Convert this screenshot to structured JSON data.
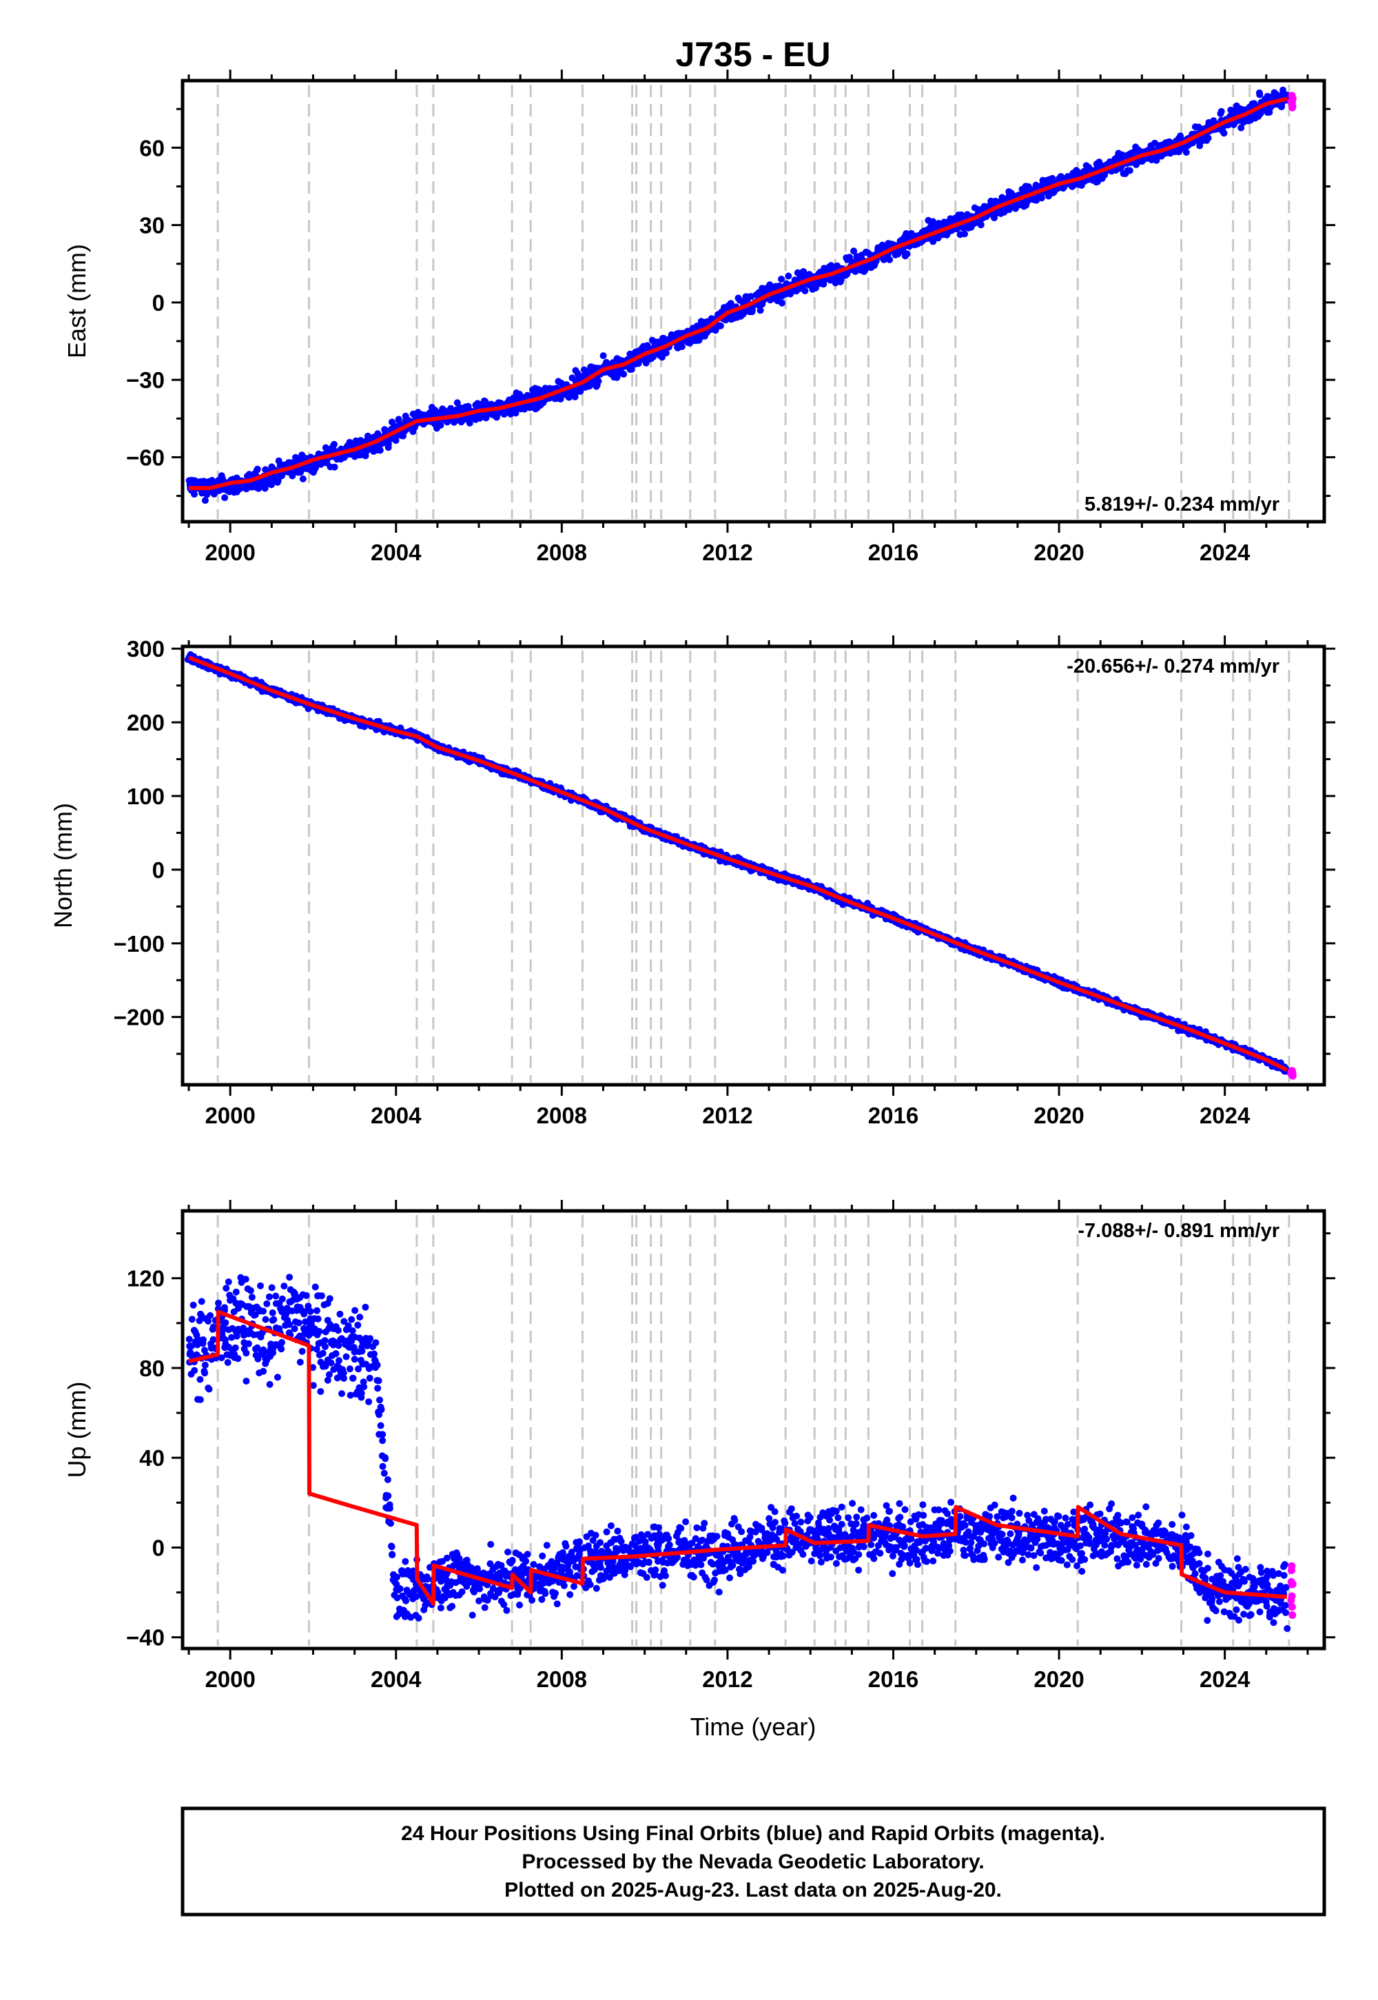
{
  "title": "J735 - EU",
  "xlabel": "Time (year)",
  "colors": {
    "final_orbits": "#0000ff",
    "rapid_orbits": "#ff00ff",
    "model": "#ff0000",
    "event_lines": "#c8c8c8"
  },
  "footer": {
    "line1": "24 Hour Positions Using Final Orbits (blue) and Rapid Orbits (magenta).",
    "line2": "Processed by the Nevada Geodetic Laboratory.",
    "line3": "Plotted on 2025-Aug-23. Last data on 2025-Aug-20."
  },
  "chart_data": [
    {
      "type": "scatter",
      "component": "east",
      "ylabel": "East (mm)",
      "rate_label": "5.819+/- 0.234 mm/yr",
      "rate_position": "bottom-right",
      "xlim": [
        1998.85,
        2026.4
      ],
      "ylim": [
        -85,
        86
      ],
      "xticks": [
        2000,
        2004,
        2008,
        2012,
        2016,
        2020,
        2024
      ],
      "yticks": [
        -60,
        -30,
        0,
        30,
        60
      ],
      "grid": false,
      "event_lines": [
        1999.7,
        2001.9,
        2004.5,
        2004.9,
        2006.8,
        2007.25,
        2008.5,
        2009.7,
        2009.8,
        2010.15,
        2010.4,
        2011.1,
        2011.7,
        2013.4,
        2014.1,
        2014.6,
        2014.85,
        2015.4,
        2016.4,
        2016.7,
        2017.5,
        2020.45,
        2022.95,
        2024.2,
        2024.6,
        2025.55
      ],
      "series": [
        {
          "role": "final-orbits",
          "x": [
            1999.0,
            1999.5,
            2000.0,
            2000.5,
            2001.0,
            2001.5,
            2002.0,
            2002.5,
            2003.0,
            2003.5,
            2004.0,
            2004.5,
            2005.0,
            2005.5,
            2006.0,
            2006.5,
            2007.0,
            2007.5,
            2008.0,
            2008.5,
            2009.0,
            2009.5,
            2010.0,
            2010.5,
            2011.0,
            2011.5,
            2012.0,
            2012.5,
            2013.0,
            2013.5,
            2014.0,
            2014.5,
            2015.0,
            2015.5,
            2016.0,
            2016.5,
            2017.0,
            2017.5,
            2018.0,
            2018.5,
            2019.0,
            2019.5,
            2020.0,
            2020.5,
            2021.0,
            2021.5,
            2022.0,
            2022.5,
            2023.0,
            2023.5,
            2024.0,
            2024.5,
            2025.0,
            2025.5
          ],
          "y": [
            -71,
            -72,
            -71,
            -70,
            -67,
            -64,
            -62,
            -59,
            -57,
            -55,
            -50,
            -46,
            -45,
            -44,
            -42,
            -41,
            -39,
            -37,
            -34,
            -31,
            -26,
            -24,
            -20,
            -17,
            -13,
            -10,
            -4,
            -1,
            3,
            6,
            9,
            11,
            14,
            17,
            21,
            24,
            27,
            30,
            33,
            37,
            40,
            43,
            46,
            48,
            51,
            54,
            57,
            59,
            62,
            66,
            70,
            73,
            77,
            79
          ]
        },
        {
          "role": "rapid-orbits",
          "x": [
            2025.6,
            2025.62
          ],
          "y": [
            79,
            77
          ]
        },
        {
          "role": "model",
          "x": [
            1999.0,
            1999.5,
            2000.0,
            2000.5,
            2001.0,
            2001.5,
            2002.0,
            2002.5,
            2003.0,
            2003.5,
            2004.0,
            2004.5,
            2005.0,
            2005.5,
            2006.0,
            2006.5,
            2007.0,
            2007.5,
            2008.0,
            2008.5,
            2009.0,
            2009.5,
            2010.0,
            2010.5,
            2011.0,
            2011.5,
            2012.0,
            2012.5,
            2013.0,
            2013.5,
            2014.0,
            2014.5,
            2015.0,
            2015.5,
            2016.0,
            2016.5,
            2017.0,
            2017.5,
            2018.0,
            2018.5,
            2019.0,
            2019.5,
            2020.0,
            2020.5,
            2021.0,
            2021.5,
            2022.0,
            2022.5,
            2023.0,
            2023.5,
            2024.0,
            2024.5,
            2025.0,
            2025.5
          ],
          "y": [
            -72,
            -72,
            -70,
            -69,
            -66,
            -64,
            -61,
            -59,
            -57,
            -54,
            -50,
            -46,
            -45,
            -44,
            -42,
            -41,
            -39,
            -37,
            -34,
            -31,
            -26,
            -24,
            -20,
            -17,
            -13,
            -10,
            -4,
            -1,
            3,
            6,
            9,
            11,
            14,
            17,
            21,
            24,
            27,
            30,
            33,
            37,
            40,
            43,
            46,
            48,
            51,
            54,
            57,
            59,
            62,
            66,
            70,
            73,
            77,
            79
          ]
        }
      ]
    },
    {
      "type": "scatter",
      "component": "north",
      "ylabel": "North (mm)",
      "rate_label": "-20.656+/- 0.274 mm/yr",
      "rate_position": "top-right",
      "xlim": [
        1998.85,
        2026.4
      ],
      "ylim": [
        -292,
        303
      ],
      "xticks": [
        2000,
        2004,
        2008,
        2012,
        2016,
        2020,
        2024
      ],
      "yticks": [
        -200,
        -100,
        0,
        100,
        200,
        300
      ],
      "grid": false,
      "event_lines": [
        1999.7,
        2001.9,
        2004.5,
        2004.9,
        2006.8,
        2007.25,
        2008.5,
        2009.7,
        2009.8,
        2010.15,
        2010.4,
        2011.1,
        2011.7,
        2013.4,
        2014.1,
        2014.6,
        2014.85,
        2015.4,
        2016.4,
        2016.7,
        2017.5,
        2020.45,
        2022.95,
        2024.2,
        2024.6,
        2025.55
      ],
      "series": [
        {
          "role": "final-orbits",
          "x": [
            1999.0,
            2000.0,
            2001.0,
            2002.0,
            2003.0,
            2004.0,
            2004.5,
            2005.0,
            2006.0,
            2007.0,
            2008.0,
            2009.0,
            2010.0,
            2011.0,
            2012.0,
            2013.0,
            2014.0,
            2015.0,
            2016.0,
            2017.0,
            2018.0,
            2019.0,
            2020.0,
            2021.0,
            2022.0,
            2023.0,
            2024.0,
            2025.0,
            2025.5
          ],
          "y": [
            288,
            266,
            243,
            223,
            203,
            188,
            182,
            166,
            148,
            127,
            105,
            83,
            56,
            35,
            15,
            -4,
            -22,
            -45,
            -66,
            -88,
            -110,
            -131,
            -153,
            -173,
            -194,
            -214,
            -236,
            -258,
            -272
          ]
        },
        {
          "role": "rapid-orbits",
          "x": [
            2025.6,
            2025.62
          ],
          "y": [
            -275,
            -276
          ]
        },
        {
          "role": "model",
          "x": [
            1999.0,
            2000.0,
            2001.0,
            2002.0,
            2003.0,
            2004.0,
            2004.5,
            2005.0,
            2006.0,
            2007.0,
            2008.0,
            2009.0,
            2010.0,
            2011.0,
            2012.0,
            2013.0,
            2014.0,
            2015.0,
            2016.0,
            2017.0,
            2018.0,
            2019.0,
            2020.0,
            2021.0,
            2022.0,
            2023.0,
            2024.0,
            2025.0,
            2025.5
          ],
          "y": [
            288,
            266,
            243,
            223,
            205,
            188,
            181,
            166,
            148,
            127,
            105,
            83,
            56,
            35,
            15,
            -4,
            -22,
            -45,
            -66,
            -88,
            -110,
            -131,
            -153,
            -173,
            -194,
            -214,
            -236,
            -258,
            -272
          ]
        }
      ]
    },
    {
      "type": "scatter",
      "component": "up",
      "ylabel": "Up (mm)",
      "rate_label": "-7.088+/- 0.891 mm/yr",
      "rate_position": "top-right",
      "xlim": [
        1998.85,
        2026.4
      ],
      "ylim": [
        -45,
        150
      ],
      "xticks": [
        2000,
        2004,
        2008,
        2012,
        2016,
        2020,
        2024
      ],
      "yticks": [
        -40,
        0,
        40,
        80,
        120
      ],
      "grid": false,
      "event_lines": [
        1999.7,
        2001.9,
        2004.5,
        2004.9,
        2006.8,
        2007.25,
        2008.5,
        2009.7,
        2009.8,
        2010.15,
        2010.4,
        2011.1,
        2011.7,
        2013.4,
        2014.1,
        2014.6,
        2014.85,
        2015.4,
        2016.4,
        2016.7,
        2017.5,
        2020.45,
        2022.95,
        2024.2,
        2024.6,
        2025.55
      ],
      "series": [
        {
          "role": "final-orbits",
          "x": [
            1999.0,
            1999.5,
            2000.0,
            2000.5,
            2001.0,
            2001.5,
            2002.0,
            2002.5,
            2003.0,
            2003.5,
            2004.0,
            2004.5,
            2005.0,
            2005.5,
            2006.0,
            2006.5,
            2007.0,
            2007.5,
            2008.0,
            2008.5,
            2009.0,
            2009.5,
            2010.0,
            2010.5,
            2011.0,
            2011.5,
            2012.0,
            2012.5,
            2013.0,
            2013.5,
            2014.0,
            2014.5,
            2015.0,
            2015.5,
            2016.0,
            2016.5,
            2017.0,
            2017.5,
            2018.0,
            2018.5,
            2019.0,
            2019.5,
            2020.0,
            2020.5,
            2021.0,
            2021.5,
            2022.0,
            2022.5,
            2023.0,
            2023.5,
            2024.0,
            2024.5,
            2025.0,
            2025.5
          ],
          "y": [
            85,
            90,
            100,
            100,
            93,
            105,
            95,
            88,
            86,
            84,
            -20,
            -22,
            -14,
            -12,
            -14,
            -16,
            -12,
            -14,
            -10,
            -6,
            -4,
            -3,
            -3,
            -2,
            -1,
            -3,
            0,
            0,
            3,
            5,
            3,
            4,
            4,
            6,
            5,
            5,
            5,
            7,
            6,
            6,
            5,
            5,
            4,
            6,
            5,
            4,
            3,
            2,
            1,
            -17,
            -19,
            -20,
            -20,
            -22
          ]
        },
        {
          "role": "rapid-orbits",
          "x": [
            2025.6,
            2025.62
          ],
          "y": [
            -15,
            -20
          ]
        },
        {
          "role": "model",
          "x": [
            1999.0,
            1999.7,
            1999.71,
            2001.9,
            2001.91,
            2003.0,
            2004.5,
            2004.51,
            2004.9,
            2004.91,
            2006.8,
            2006.81,
            2007.25,
            2007.26,
            2008.5,
            2008.51,
            2009.7,
            2010.4,
            2011.1,
            2011.7,
            2013.4,
            2013.41,
            2014.1,
            2015.4,
            2015.41,
            2016.7,
            2017.5,
            2017.51,
            2018.5,
            2020.45,
            2020.46,
            2021.5,
            2022.95,
            2022.96,
            2024.0,
            2025.5
          ],
          "y": [
            83,
            86,
            105,
            90,
            24,
            18,
            10,
            -14,
            -25,
            -8,
            -18,
            -12,
            -20,
            -10,
            -16,
            -5,
            -4,
            -3,
            -2,
            -1,
            1,
            8,
            2,
            3,
            10,
            5,
            6,
            18,
            10,
            5,
            18,
            6,
            1,
            -12,
            -20,
            -22
          ]
        }
      ]
    }
  ]
}
